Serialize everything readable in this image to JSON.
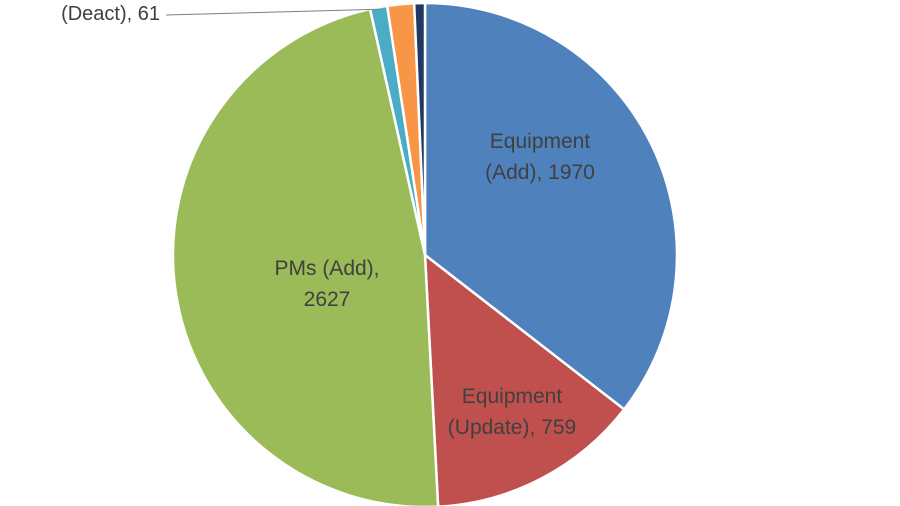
{
  "chart_data": {
    "type": "pie",
    "slices": [
      {
        "category": "Equipment (Add)",
        "value": 1970,
        "color": "#4f81bd",
        "label_lines": [
          "Equipment",
          "(Add), 1970"
        ]
      },
      {
        "category": "Equipment (Update)",
        "value": 759,
        "color": "#c0504d",
        "label_lines": [
          "Equipment",
          "(Update), 759"
        ]
      },
      {
        "category": "PMs (Add)",
        "value": 2627,
        "color": "#9bbb59",
        "label_lines": [
          "PMs (Add),",
          "2627"
        ]
      },
      {
        "category": "",
        "value": 61,
        "color": "#4bacc6",
        "label_lines": [
          "(Deact), 61"
        ]
      },
      {
        "category": "",
        "value": 95,
        "color": "#f79646",
        "label_lines": []
      },
      {
        "category": "",
        "value": 38,
        "color": "#1f3864",
        "label_lines": []
      }
    ],
    "start_angle_deg": 0,
    "direction": "clockwise",
    "legend": "none"
  }
}
